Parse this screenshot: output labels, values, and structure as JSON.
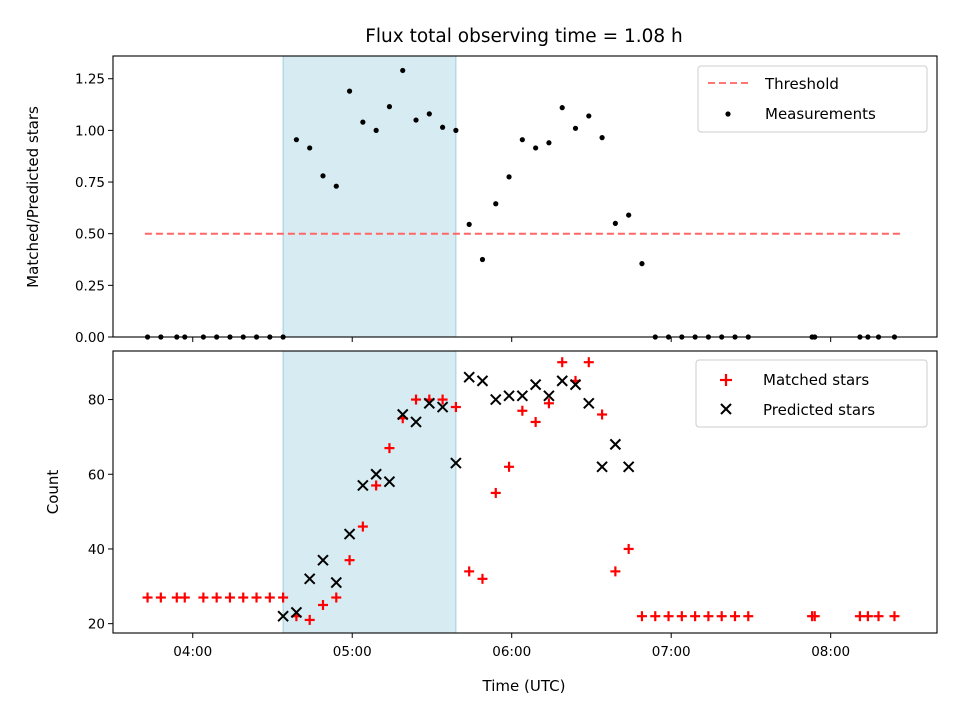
{
  "chart_data": [
    {
      "type": "line",
      "title": "Flux total observing time = 1.08 h",
      "xlabel": "",
      "ylabel": "Matched/Predicted stars",
      "xlim": [
        "03:30",
        "08:40"
      ],
      "ylim": [
        0,
        1.36
      ],
      "yticks": [
        "0.00",
        "0.25",
        "0.50",
        "0.75",
        "1.00",
        "1.25"
      ],
      "ytick_values": [
        0,
        0.25,
        0.5,
        0.75,
        1.0,
        1.25
      ],
      "grid": false,
      "legend_position": "top-right",
      "highlight_span": {
        "x": [
          "04:34",
          "05:39"
        ],
        "color": "#add8e6"
      },
      "series": [
        {
          "name": "Threshold",
          "kind": "dashed-line",
          "color": "#ff6666",
          "x": [
            "03:42",
            "08:27"
          ],
          "y": [
            0.5,
            0.5
          ]
        },
        {
          "name": "Measurements",
          "kind": "scatter",
          "color": "#000000",
          "x": [
            "03:43",
            "03:48",
            "03:54",
            "03:57",
            "04:04",
            "04:09",
            "04:14",
            "04:19",
            "04:24",
            "04:29",
            "04:34",
            "04:39",
            "04:44",
            "04:49",
            "04:54",
            "04:59",
            "05:04",
            "05:09",
            "05:14",
            "05:19",
            "05:24",
            "05:29",
            "05:34",
            "05:39",
            "05:44",
            "05:49",
            "05:54",
            "05:59",
            "06:04",
            "06:09",
            "06:14",
            "06:19",
            "06:24",
            "06:29",
            "06:34",
            "06:39",
            "06:44",
            "06:49",
            "06:54",
            "06:59",
            "07:04",
            "07:09",
            "07:14",
            "07:19",
            "07:24",
            "07:29",
            "07:53",
            "07:54",
            "08:11",
            "08:14",
            "08:18",
            "08:24"
          ],
          "y": [
            0,
            0,
            0,
            0,
            0,
            0,
            0,
            0,
            0,
            0,
            0,
            0.955,
            0.915,
            0.78,
            0.73,
            1.19,
            1.04,
            1.0,
            1.115,
            1.29,
            1.05,
            1.08,
            1.015,
            1.0,
            0.545,
            0.375,
            0.645,
            0.775,
            0.955,
            0.915,
            0.94,
            1.11,
            1.01,
            1.07,
            0.965,
            0.55,
            0.59,
            0.355,
            0,
            0,
            0,
            0,
            0,
            0,
            0,
            0,
            0,
            0,
            0,
            0,
            0,
            0
          ]
        }
      ]
    },
    {
      "type": "scatter",
      "title": "",
      "xlabel": "Time (UTC)",
      "ylabel": "Count",
      "xlim": [
        "03:30",
        "08:40"
      ],
      "ylim": [
        17.5,
        93
      ],
      "xticks": [
        "04:00",
        "05:00",
        "06:00",
        "07:00",
        "08:00"
      ],
      "yticks": [
        "20",
        "40",
        "60",
        "80"
      ],
      "ytick_values": [
        20,
        40,
        60,
        80
      ],
      "grid": false,
      "legend_position": "top-right",
      "highlight_span": {
        "x": [
          "04:34",
          "05:39"
        ],
        "color": "#add8e6"
      },
      "series": [
        {
          "name": "Matched stars",
          "kind": "plus",
          "color": "#ff0000",
          "x": [
            "03:43",
            "03:48",
            "03:54",
            "03:57",
            "04:04",
            "04:09",
            "04:14",
            "04:19",
            "04:24",
            "04:29",
            "04:34",
            "04:39",
            "04:44",
            "04:49",
            "04:54",
            "04:59",
            "05:04",
            "05:09",
            "05:14",
            "05:19",
            "05:24",
            "05:29",
            "05:34",
            "05:39",
            "05:44",
            "05:49",
            "05:54",
            "05:59",
            "06:04",
            "06:09",
            "06:14",
            "06:19",
            "06:24",
            "06:29",
            "06:34",
            "06:39",
            "06:44",
            "06:49",
            "06:54",
            "06:59",
            "07:04",
            "07:09",
            "07:14",
            "07:19",
            "07:24",
            "07:29",
            "07:53",
            "07:54",
            "08:11",
            "08:14",
            "08:18",
            "08:24"
          ],
          "y": [
            27,
            27,
            27,
            27,
            27,
            27,
            27,
            27,
            27,
            27,
            27,
            22,
            21,
            25,
            27,
            37,
            46,
            57,
            67,
            75,
            80,
            80,
            80,
            78,
            34,
            32,
            55,
            62,
            77,
            74,
            79,
            90,
            85,
            90,
            76,
            34,
            40,
            22,
            22,
            22,
            22,
            22,
            22,
            22,
            22,
            22,
            22,
            22,
            22,
            22,
            22,
            22
          ]
        },
        {
          "name": "Predicted stars",
          "kind": "cross",
          "color": "#000000",
          "x": [
            "04:34",
            "04:39",
            "04:44",
            "04:49",
            "04:54",
            "04:59",
            "05:04",
            "05:09",
            "05:14",
            "05:19",
            "05:24",
            "05:29",
            "05:34",
            "05:39",
            "05:44",
            "05:49",
            "05:54",
            "05:59",
            "06:04",
            "06:09",
            "06:14",
            "06:19",
            "06:24",
            "06:29",
            "06:34",
            "06:39",
            "06:44"
          ],
          "y": [
            22,
            23,
            32,
            37,
            31,
            44,
            57,
            60,
            58,
            76,
            74,
            79,
            78,
            63,
            86,
            85,
            80,
            81,
            81,
            84,
            81,
            85,
            84,
            79,
            62,
            68,
            62
          ]
        }
      ]
    }
  ]
}
